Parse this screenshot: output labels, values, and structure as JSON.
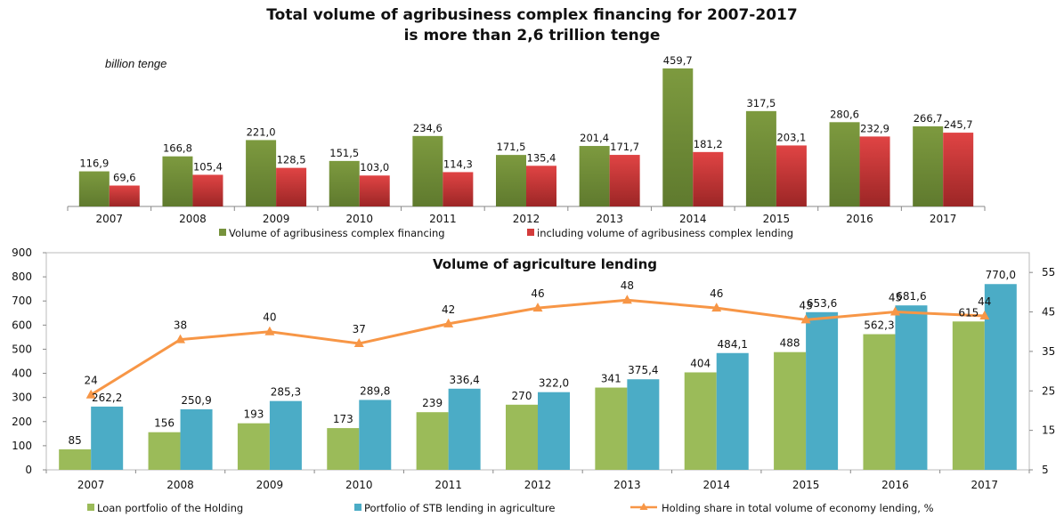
{
  "chart_data": [
    {
      "type": "bar",
      "title_lines": [
        "Total volume of agribusiness complex financing for 2007-2017",
        "is more than 2,6 trillion tenge"
      ],
      "unit": "billion tenge",
      "categories": [
        "2007",
        "2008",
        "2009",
        "2010",
        "2011",
        "2012",
        "2013",
        "2014",
        "2015",
        "2016",
        "2017"
      ],
      "series": [
        {
          "name": "Volume of agribusiness complex financing",
          "color": "#76923c",
          "values": [
            116.9,
            166.8,
            221.0,
            151.5,
            234.6,
            171.5,
            201.4,
            459.7,
            317.5,
            280.6,
            266.7
          ],
          "labels": [
            "116,9",
            "166,8",
            "221,0",
            "151,5",
            "234,6",
            "171,5",
            "201,4",
            "459,7",
            "317,5",
            "280,6",
            "266,7"
          ]
        },
        {
          "name": "including volume of agribusiness complex lending",
          "color": "#d33b3b",
          "values": [
            69.6,
            105.4,
            128.5,
            103.0,
            114.3,
            135.4,
            171.7,
            181.2,
            203.1,
            232.9,
            245.7
          ],
          "labels": [
            "69,6",
            "105,4",
            "128,5",
            "103,0",
            "114,3",
            "135,4",
            "171,7",
            "181,2",
            "203,1",
            "232,9",
            "245,7"
          ]
        }
      ],
      "ylim": [
        0,
        480
      ],
      "legend": "bottom"
    },
    {
      "type": "bar",
      "title": "Volume of agriculture lending",
      "categories": [
        "2007",
        "2008",
        "2009",
        "2010",
        "2011",
        "2012",
        "2013",
        "2014",
        "2015",
        "2016",
        "2017"
      ],
      "y_ticks": [
        "0",
        "100",
        "200",
        "300",
        "400",
        "500",
        "600",
        "700",
        "800",
        "900"
      ],
      "y2_ticks": [
        "5",
        "15",
        "25",
        "35",
        "45",
        "55"
      ],
      "ylim": [
        0,
        900
      ],
      "y2lim": [
        5,
        60
      ],
      "series": [
        {
          "name": "Loan portfolio of the Holding",
          "color": "#9bbb59",
          "axis": "left",
          "values": [
            85,
            156,
            193,
            173,
            239,
            270,
            341,
            404,
            488,
            562.3,
            615
          ],
          "labels": [
            "85",
            "156",
            "193",
            "173",
            "239",
            "270",
            "341",
            "404",
            "488",
            "562,3",
            "615"
          ]
        },
        {
          "name": "Portfolio of STB lending in agriculture",
          "color": "#4bacc6",
          "axis": "left",
          "values": [
            262.2,
            250.9,
            285.3,
            289.8,
            336.4,
            322.0,
            375.4,
            484.1,
            653.6,
            681.6,
            770.0
          ],
          "labels": [
            "262,2",
            "250,9",
            "285,3",
            "289,8",
            "336,4",
            "322,0",
            "375,4",
            "484,1",
            "653,6",
            "681,6",
            "770,0"
          ]
        },
        {
          "name": "Holding share in total volume of economy lending, %",
          "color": "#f79646",
          "axis": "right",
          "type": "line",
          "values": [
            24,
            38,
            40,
            37,
            42,
            46,
            48,
            46,
            43,
            45,
            44
          ],
          "labels": [
            "24",
            "38",
            "40",
            "37",
            "42",
            "46",
            "48",
            "46",
            "43",
            "45",
            "44"
          ]
        }
      ],
      "legend": "bottom"
    }
  ]
}
